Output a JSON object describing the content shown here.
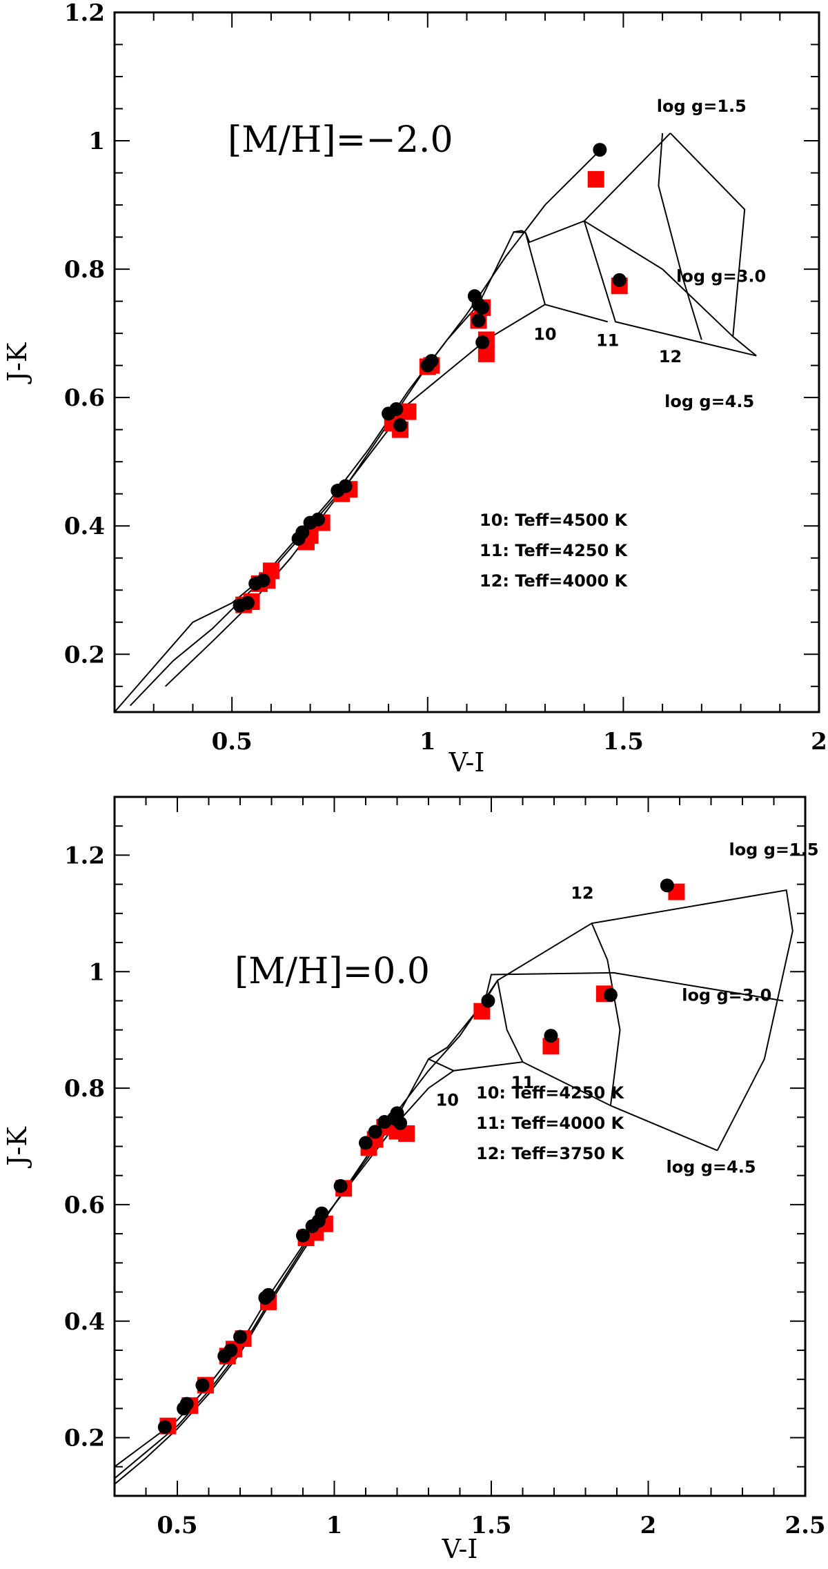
{
  "chart_data": [
    {
      "type": "scatter",
      "title": "",
      "xlabel": "V-I",
      "ylabel": "J-K",
      "xlim": [
        0.2,
        2.0
      ],
      "ylim": [
        0.11,
        1.2
      ],
      "xticks": [
        0.5,
        1,
        1.5,
        2
      ],
      "xtick_labels": [
        "0.5",
        "1",
        "1.5",
        "2"
      ],
      "yticks": [
        0.2,
        0.4,
        0.6,
        0.8,
        1,
        1.2
      ],
      "ytick_labels": [
        "0.2",
        "0.4",
        "0.6",
        "0.8",
        "1",
        "1.2"
      ],
      "metallicity_label": "[M/H]=−2.0",
      "annotations": [
        {
          "text": "log  g=1.5",
          "x": 1.7,
          "y": 1.045
        },
        {
          "text": "log  g=3.0",
          "x": 1.75,
          "y": 0.78
        },
        {
          "text": "log  g=4.5",
          "x": 1.72,
          "y": 0.585
        },
        {
          "text": "10",
          "x": 1.3,
          "y": 0.69
        },
        {
          "text": "11",
          "x": 1.46,
          "y": 0.68
        },
        {
          "text": "12",
          "x": 1.62,
          "y": 0.655
        }
      ],
      "legend_text": [
        "10:  Teff=4500  K",
        "11:  Teff=4250  K",
        "12:  Teff=4000  K"
      ],
      "series": [
        {
          "marker": "square",
          "color": "#ff0000",
          "x": [
            0.53,
            0.55,
            0.57,
            0.59,
            0.6,
            0.69,
            0.7,
            0.73,
            0.78,
            0.8,
            0.91,
            0.93,
            0.95,
            1.0,
            1.01,
            1.13,
            1.14,
            1.15,
            1.15,
            1.43,
            1.49
          ],
          "y": [
            0.277,
            0.282,
            0.31,
            0.315,
            0.33,
            0.375,
            0.385,
            0.405,
            0.45,
            0.457,
            0.56,
            0.55,
            0.578,
            0.648,
            0.65,
            0.72,
            0.74,
            0.69,
            0.668,
            0.94,
            0.774
          ]
        },
        {
          "marker": "circle",
          "color": "#000000",
          "x": [
            0.52,
            0.54,
            0.56,
            0.58,
            0.67,
            0.68,
            0.7,
            0.72,
            0.77,
            0.79,
            0.9,
            0.92,
            0.93,
            1.0,
            1.01,
            1.12,
            1.13,
            1.13,
            1.14,
            1.14,
            1.44,
            1.49
          ],
          "y": [
            0.276,
            0.28,
            0.31,
            0.315,
            0.38,
            0.39,
            0.405,
            0.41,
            0.455,
            0.462,
            0.575,
            0.582,
            0.557,
            0.65,
            0.657,
            0.758,
            0.745,
            0.72,
            0.74,
            0.686,
            0.986,
            0.783
          ]
        }
      ],
      "grid_lines": [
        [
          [
            1.22,
            0.858
          ],
          [
            1.24,
            0.86
          ],
          [
            1.25,
            0.857
          ],
          [
            1.26,
            0.842
          ],
          [
            1.4,
            0.875
          ],
          [
            1.62,
            1.012
          ]
        ],
        [
          [
            1.25,
            0.857
          ],
          [
            1.3,
            0.745
          ],
          [
            1.46,
            0.718
          ]
        ],
        [
          [
            1.62,
            1.012
          ],
          [
            1.81,
            0.893
          ],
          [
            1.78,
            0.695
          ],
          [
            1.84,
            0.665
          ]
        ],
        [
          [
            1.4,
            0.875
          ],
          [
            1.48,
            0.718
          ],
          [
            1.84,
            0.665
          ]
        ],
        [
          [
            1.6,
            1.012
          ],
          [
            1.59,
            0.93
          ],
          [
            1.65,
            0.79
          ],
          [
            1.7,
            0.69
          ]
        ],
        [
          [
            1.4,
            0.875
          ],
          [
            1.6,
            0.8
          ],
          [
            1.78,
            0.695
          ]
        ]
      ],
      "isochrones": [
        [
          [
            0.2,
            0.11
          ],
          [
            0.3,
            0.18
          ],
          [
            0.4,
            0.25
          ],
          [
            0.5,
            0.28
          ],
          [
            0.6,
            0.33
          ],
          [
            0.7,
            0.4
          ],
          [
            0.8,
            0.47
          ],
          [
            0.9,
            0.56
          ],
          [
            1.0,
            0.65
          ],
          [
            1.1,
            0.73
          ],
          [
            1.2,
            0.82
          ],
          [
            1.3,
            0.9
          ],
          [
            1.44,
            0.985
          ]
        ],
        [
          [
            0.24,
            0.12
          ],
          [
            0.35,
            0.19
          ],
          [
            0.45,
            0.24
          ],
          [
            0.55,
            0.3
          ],
          [
            0.65,
            0.37
          ],
          [
            0.75,
            0.44
          ],
          [
            0.85,
            0.52
          ],
          [
            0.95,
            0.61
          ],
          [
            1.05,
            0.69
          ],
          [
            1.13,
            0.745
          ],
          [
            1.22,
            0.858
          ],
          [
            1.25,
            0.857
          ]
        ],
        [
          [
            0.33,
            0.15
          ],
          [
            0.45,
            0.22
          ],
          [
            0.55,
            0.28
          ],
          [
            0.65,
            0.35
          ],
          [
            0.75,
            0.43
          ],
          [
            0.85,
            0.51
          ],
          [
            0.95,
            0.59
          ],
          [
            1.05,
            0.64
          ],
          [
            1.15,
            0.69
          ],
          [
            1.3,
            0.745
          ]
        ]
      ]
    },
    {
      "type": "scatter",
      "title": "",
      "xlabel": "V-I",
      "ylabel": "J-K",
      "xlim": [
        0.3,
        2.5
      ],
      "ylim": [
        0.1,
        1.3
      ],
      "xticks": [
        0.5,
        1,
        1.5,
        2,
        2.5
      ],
      "xtick_labels": [
        "0.5",
        "1",
        "1.5",
        "2",
        "2.5"
      ],
      "yticks": [
        0.2,
        0.4,
        0.6,
        0.8,
        1,
        1.2
      ],
      "ytick_labels": [
        "0.2",
        "0.4",
        "0.6",
        "0.8",
        "1",
        "1.2"
      ],
      "metallicity_label": "[M/H]=0.0",
      "annotations": [
        {
          "text": "log  g=1.5",
          "x": 2.4,
          "y": 1.2
        },
        {
          "text": "12",
          "x": 1.79,
          "y": 1.125
        },
        {
          "text": "log  g=3.0",
          "x": 2.25,
          "y": 0.95
        },
        {
          "text": "10",
          "x": 1.36,
          "y": 0.77
        },
        {
          "text": "11",
          "x": 1.6,
          "y": 0.8
        },
        {
          "text": "log  g=4.5",
          "x": 2.2,
          "y": 0.655
        }
      ],
      "legend_text": [
        "10:  Teff=4250  K",
        "11:  Teff=4000  K",
        "12:  Teff=3750  K"
      ],
      "series": [
        {
          "marker": "square",
          "color": "#ff0000",
          "x": [
            0.47,
            0.54,
            0.59,
            0.66,
            0.68,
            0.71,
            0.79,
            0.91,
            0.94,
            0.97,
            1.03,
            1.11,
            1.13,
            1.16,
            1.2,
            1.23,
            1.47,
            1.69,
            1.86,
            2.09
          ],
          "y": [
            0.22,
            0.255,
            0.29,
            0.34,
            0.352,
            0.37,
            0.433,
            0.543,
            0.552,
            0.567,
            0.628,
            0.698,
            0.712,
            0.733,
            0.726,
            0.722,
            0.932,
            0.872,
            0.962,
            1.137
          ]
        },
        {
          "marker": "circle",
          "color": "#000000",
          "x": [
            0.46,
            0.52,
            0.53,
            0.58,
            0.65,
            0.67,
            0.7,
            0.78,
            0.79,
            0.9,
            0.93,
            0.95,
            0.96,
            1.02,
            1.1,
            1.13,
            1.16,
            1.19,
            1.2,
            1.21,
            1.49,
            1.69,
            1.88,
            2.06
          ],
          "y": [
            0.218,
            0.25,
            0.258,
            0.29,
            0.34,
            0.35,
            0.373,
            0.44,
            0.445,
            0.547,
            0.563,
            0.572,
            0.585,
            0.632,
            0.706,
            0.725,
            0.742,
            0.748,
            0.757,
            0.74,
            0.95,
            0.89,
            0.96,
            1.148
          ]
        }
      ],
      "grid_lines": [
        [
          [
            1.3,
            0.85
          ],
          [
            1.36,
            0.87
          ],
          [
            1.48,
            0.95
          ],
          [
            1.52,
            0.985
          ],
          [
            1.82,
            1.083
          ],
          [
            2.44,
            1.14
          ],
          [
            2.46,
            1.07
          ],
          [
            2.37,
            0.85
          ],
          [
            2.22,
            0.693
          ]
        ],
        [
          [
            1.3,
            0.85
          ],
          [
            1.38,
            0.83
          ],
          [
            1.6,
            0.845
          ],
          [
            1.88,
            0.77
          ],
          [
            2.22,
            0.693
          ]
        ],
        [
          [
            1.48,
            0.95
          ],
          [
            1.5,
            0.995
          ],
          [
            1.89,
            0.998
          ],
          [
            2.43,
            0.95
          ]
        ],
        [
          [
            1.52,
            0.985
          ],
          [
            1.55,
            0.9
          ],
          [
            1.6,
            0.845
          ]
        ],
        [
          [
            1.82,
            1.083
          ],
          [
            1.87,
            1.02
          ],
          [
            1.91,
            0.9
          ],
          [
            1.88,
            0.77
          ]
        ]
      ],
      "isochrones": [
        [
          [
            0.3,
            0.15
          ],
          [
            0.4,
            0.19
          ],
          [
            0.5,
            0.23
          ],
          [
            0.6,
            0.29
          ],
          [
            0.7,
            0.36
          ],
          [
            0.8,
            0.45
          ],
          [
            0.9,
            0.53
          ],
          [
            1.0,
            0.6
          ],
          [
            1.1,
            0.68
          ],
          [
            1.2,
            0.76
          ],
          [
            1.3,
            0.83
          ],
          [
            1.4,
            0.89
          ],
          [
            1.52,
            0.985
          ]
        ],
        [
          [
            0.3,
            0.13
          ],
          [
            0.4,
            0.175
          ],
          [
            0.5,
            0.22
          ],
          [
            0.6,
            0.28
          ],
          [
            0.7,
            0.35
          ],
          [
            0.8,
            0.44
          ],
          [
            0.9,
            0.525
          ],
          [
            1.0,
            0.6
          ],
          [
            1.1,
            0.675
          ],
          [
            1.2,
            0.75
          ],
          [
            1.3,
            0.85
          ],
          [
            1.36,
            0.87
          ]
        ],
        [
          [
            0.3,
            0.12
          ],
          [
            0.4,
            0.165
          ],
          [
            0.5,
            0.215
          ],
          [
            0.6,
            0.275
          ],
          [
            0.7,
            0.345
          ],
          [
            0.8,
            0.435
          ],
          [
            0.9,
            0.52
          ],
          [
            1.0,
            0.6
          ],
          [
            1.1,
            0.67
          ],
          [
            1.2,
            0.74
          ],
          [
            1.3,
            0.8
          ],
          [
            1.38,
            0.83
          ]
        ]
      ]
    }
  ]
}
